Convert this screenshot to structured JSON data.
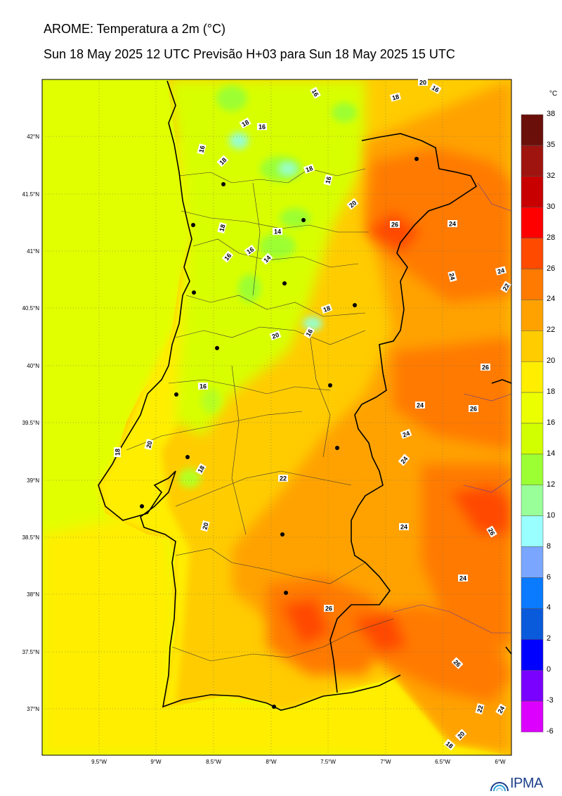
{
  "header": {
    "title": "AROME: Temperatura a 2m (°C)",
    "subtitle": "Sun 18 May 2025 12 UTC Previsão H+03 para Sun 18 May 2025 15 UTC"
  },
  "axes": {
    "lon_labels": [
      "9.5°W",
      "9°W",
      "8.5°W",
      "8°W",
      "7.5°W",
      "7°W",
      "6.5°W",
      "6°W"
    ],
    "lat_labels": [
      "42°N",
      "41.5°N",
      "41°N",
      "40.5°N",
      "40°N",
      "39.5°N",
      "39°N",
      "38.5°N",
      "38°N",
      "37.5°N",
      "37°N"
    ]
  },
  "colorbar": {
    "unit": "°C",
    "levels": [
      "38",
      "35",
      "32",
      "30",
      "28",
      "26",
      "24",
      "22",
      "20",
      "18",
      "16",
      "14",
      "12",
      "10",
      "8",
      "6",
      "4",
      "2",
      "0",
      "-3",
      "-6"
    ],
    "colors": [
      "#6b0f0a",
      "#a0140f",
      "#c80000",
      "#ff0000",
      "#ff4a00",
      "#ff7a00",
      "#ffa200",
      "#ffcc00",
      "#ffee00",
      "#ecff00",
      "#d2ff00",
      "#9cff33",
      "#99ff99",
      "#99ffff",
      "#7aa6ff",
      "#0a7aff",
      "#0a5adc",
      "#0000ff",
      "#7a00ff",
      "#dc00ff"
    ]
  },
  "contour_labels": [
    {
      "t": "16"
    },
    {
      "t": "18"
    },
    {
      "t": "20"
    },
    {
      "t": "16"
    },
    {
      "t": "18"
    },
    {
      "t": "16"
    },
    {
      "t": "16"
    },
    {
      "t": "18"
    },
    {
      "t": "18"
    },
    {
      "t": "16"
    },
    {
      "t": "20"
    },
    {
      "t": "26"
    },
    {
      "t": "24"
    },
    {
      "t": "18"
    },
    {
      "t": "14"
    },
    {
      "t": "16"
    },
    {
      "t": "16"
    },
    {
      "t": "14"
    },
    {
      "t": "24"
    },
    {
      "t": "24"
    },
    {
      "t": "22"
    },
    {
      "t": "18"
    },
    {
      "t": "16"
    },
    {
      "t": "20"
    },
    {
      "t": "26"
    },
    {
      "t": "16"
    },
    {
      "t": "24"
    },
    {
      "t": "26"
    },
    {
      "t": "24"
    },
    {
      "t": "20"
    },
    {
      "t": "18"
    },
    {
      "t": "24"
    },
    {
      "t": "18"
    },
    {
      "t": "22"
    },
    {
      "t": "24"
    },
    {
      "t": "20"
    },
    {
      "t": "26"
    },
    {
      "t": "24"
    },
    {
      "t": "26"
    },
    {
      "t": "26"
    },
    {
      "t": "22"
    },
    {
      "t": "24"
    },
    {
      "t": "20"
    },
    {
      "t": "18"
    }
  ],
  "logo": {
    "text": "IPMA"
  }
}
